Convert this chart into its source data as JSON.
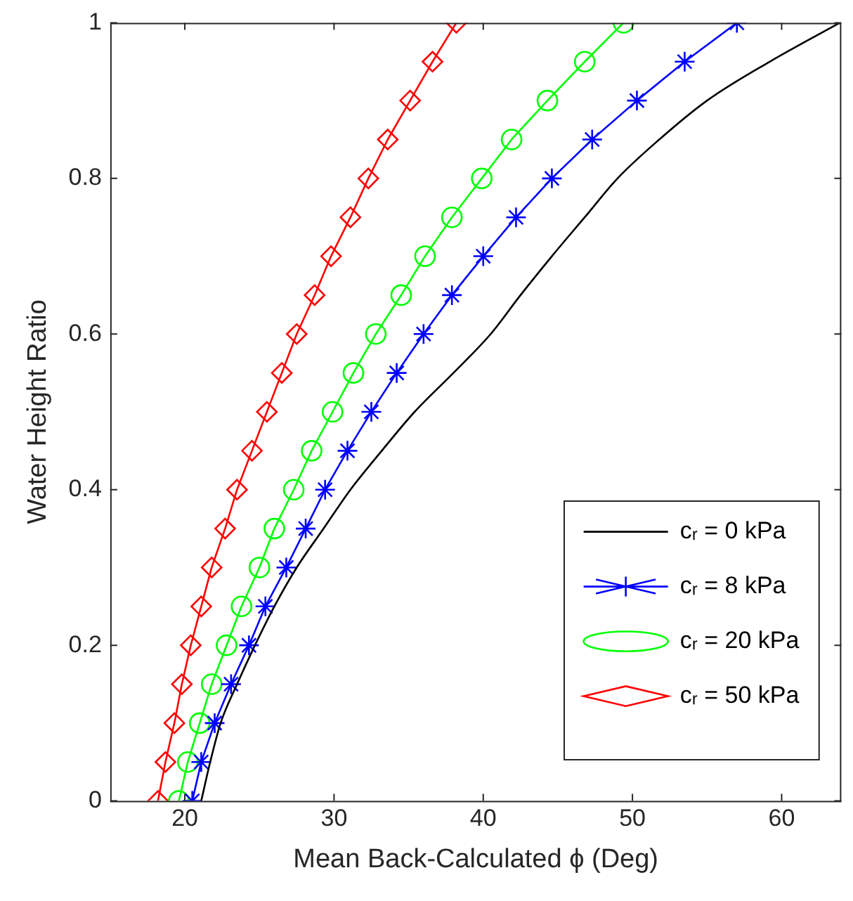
{
  "chart_data": {
    "type": "line",
    "xlabel": "Mean Back-Calculated ϕ (Deg)",
    "ylabel": "Water Height Ratio",
    "xlim": [
      15,
      64
    ],
    "xticks": [
      20,
      30,
      40,
      50,
      60
    ],
    "ylim": [
      0,
      1
    ],
    "yticks": [
      0,
      0.2,
      0.4,
      0.6,
      0.8,
      1
    ],
    "grid": false,
    "legend": "bottom right",
    "series": [
      {
        "name": "cᵣ = 0 kPa",
        "color": "#000000",
        "marker": "none",
        "x": [
          21.1,
          21.7,
          22.4,
          23.5,
          24.7,
          26.0,
          27.5,
          29.3,
          31.1,
          33.2,
          35.4,
          38.0,
          40.5,
          42.5,
          44.6,
          46.8,
          49.0,
          51.8,
          55.0,
          59.2,
          63.9
        ],
        "values": [
          0,
          0.05,
          0.1,
          0.15,
          0.2,
          0.25,
          0.3,
          0.35,
          0.4,
          0.45,
          0.5,
          0.55,
          0.6,
          0.65,
          0.7,
          0.75,
          0.8,
          0.85,
          0.9,
          0.95,
          1
        ]
      },
      {
        "name": "cᵣ = 8 kPa",
        "color": "#0000ff",
        "marker": "cross",
        "x": [
          20.5,
          21.1,
          22.0,
          23.1,
          24.3,
          25.4,
          26.8,
          28.1,
          29.4,
          30.9,
          32.5,
          34.2,
          36.0,
          37.9,
          40.0,
          42.2,
          44.6,
          47.3,
          50.3,
          53.5,
          57.0
        ],
        "values": [
          0,
          0.05,
          0.1,
          0.15,
          0.2,
          0.25,
          0.3,
          0.35,
          0.4,
          0.45,
          0.5,
          0.55,
          0.6,
          0.65,
          0.7,
          0.75,
          0.8,
          0.85,
          0.9,
          0.95,
          1
        ]
      },
      {
        "name": "cᵣ = 20 kPa",
        "color": "#00ff00",
        "marker": "circle",
        "x": [
          19.6,
          20.2,
          21.0,
          21.8,
          22.8,
          23.8,
          25.0,
          26.0,
          27.3,
          28.5,
          29.9,
          31.3,
          32.8,
          34.5,
          36.1,
          37.9,
          39.9,
          41.9,
          44.3,
          46.8,
          49.4
        ],
        "values": [
          0,
          0.05,
          0.1,
          0.15,
          0.2,
          0.25,
          0.3,
          0.35,
          0.4,
          0.45,
          0.5,
          0.55,
          0.6,
          0.65,
          0.7,
          0.75,
          0.8,
          0.85,
          0.9,
          0.95,
          1
        ]
      },
      {
        "name": "cᵣ = 50 kPa",
        "color": "#ff0000",
        "marker": "diamond",
        "x": [
          18.2,
          18.7,
          19.3,
          19.8,
          20.4,
          21.1,
          21.8,
          22.7,
          23.5,
          24.5,
          25.5,
          26.5,
          27.5,
          28.7,
          29.8,
          31.1,
          32.3,
          33.6,
          35.1,
          36.6,
          38.2
        ],
        "values": [
          0,
          0.05,
          0.1,
          0.15,
          0.2,
          0.25,
          0.3,
          0.35,
          0.4,
          0.45,
          0.5,
          0.55,
          0.6,
          0.65,
          0.7,
          0.75,
          0.8,
          0.85,
          0.9,
          0.95,
          1
        ]
      }
    ]
  }
}
